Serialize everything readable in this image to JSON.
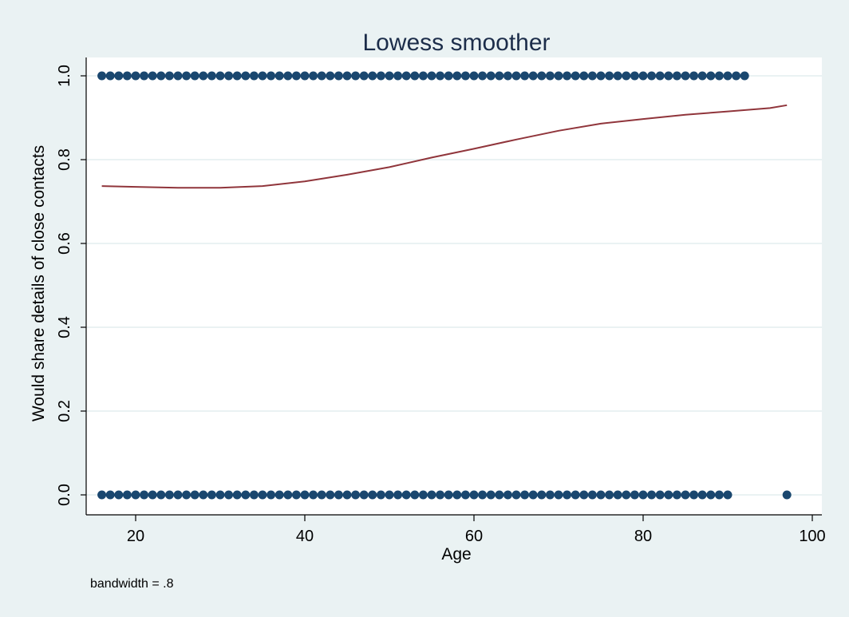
{
  "chart_data": {
    "type": "scatter",
    "title": "Lowess smoother",
    "xlabel": "Age",
    "ylabel": "Would share details of close contacts",
    "note": "bandwidth = .8",
    "xlim": [
      15,
      100
    ],
    "ylim": [
      0,
      1
    ],
    "x_ticks": [
      20,
      40,
      60,
      80,
      100
    ],
    "y_ticks": [
      0,
      0.2,
      0.4,
      0.6,
      0.8,
      1
    ],
    "y_tick_labels": [
      "0.0",
      "0.2",
      "0.4",
      "0.6",
      "0.8",
      "1.0"
    ],
    "grid": true,
    "colors": {
      "outer_background": "#eaf2f3",
      "plot_background": "#ffffff",
      "grid": "#eaf2f3",
      "points": "#1a476f",
      "line": "#90353b",
      "title": "#1c2d4a"
    },
    "series": [
      {
        "type": "scatter",
        "points_y1_x": [
          16,
          17,
          18,
          19,
          20,
          21,
          22,
          23,
          24,
          25,
          26,
          27,
          28,
          29,
          30,
          31,
          32,
          33,
          34,
          35,
          36,
          37,
          38,
          39,
          40,
          41,
          42,
          43,
          44,
          45,
          46,
          47,
          48,
          49,
          50,
          51,
          52,
          53,
          54,
          55,
          56,
          57,
          58,
          59,
          60,
          61,
          62,
          63,
          64,
          65,
          66,
          67,
          68,
          69,
          70,
          71,
          72,
          73,
          74,
          75,
          76,
          77,
          78,
          79,
          80,
          81,
          82,
          83,
          84,
          85,
          86,
          87,
          88,
          89,
          90,
          91,
          92
        ],
        "points_y0_x": [
          16,
          17,
          18,
          19,
          20,
          21,
          22,
          23,
          24,
          25,
          26,
          27,
          28,
          29,
          30,
          31,
          32,
          33,
          34,
          35,
          36,
          37,
          38,
          39,
          40,
          41,
          42,
          43,
          44,
          45,
          46,
          47,
          48,
          49,
          50,
          51,
          52,
          53,
          54,
          55,
          56,
          57,
          58,
          59,
          60,
          61,
          62,
          63,
          64,
          65,
          66,
          67,
          68,
          69,
          70,
          71,
          72,
          73,
          74,
          75,
          76,
          77,
          78,
          79,
          80,
          81,
          82,
          83,
          84,
          85,
          86,
          87,
          88,
          89,
          90,
          97
        ]
      },
      {
        "type": "line",
        "x": [
          16,
          20,
          25,
          30,
          35,
          40,
          45,
          50,
          55,
          60,
          65,
          70,
          75,
          80,
          85,
          90,
          95,
          97
        ],
        "y": [
          0.737,
          0.735,
          0.733,
          0.733,
          0.737,
          0.748,
          0.764,
          0.782,
          0.805,
          0.826,
          0.848,
          0.869,
          0.886,
          0.897,
          0.907,
          0.915,
          0.923,
          0.93
        ]
      }
    ]
  }
}
